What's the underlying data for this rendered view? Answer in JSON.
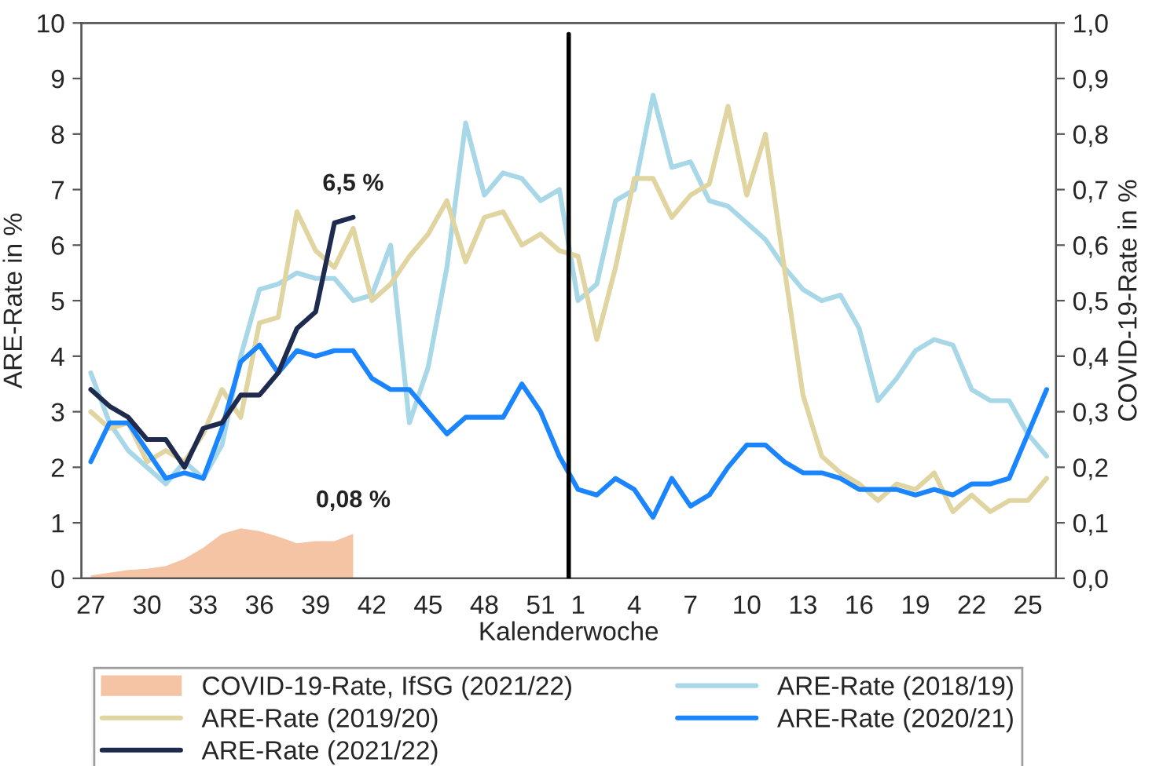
{
  "chart_data": {
    "type": "line",
    "xlabel": "Kalenderwoche",
    "ylabel": "ARE-Rate in %",
    "y2label": "COVID-19-Rate in %",
    "categories": [
      "27",
      null,
      null,
      "30",
      null,
      null,
      "33",
      null,
      null,
      "36",
      null,
      null,
      "39",
      null,
      null,
      "42",
      null,
      null,
      "45",
      null,
      null,
      "48",
      null,
      null,
      "51",
      null,
      "1",
      null,
      null,
      "4",
      null,
      null,
      "7",
      null,
      null,
      "10",
      null,
      null,
      "13",
      null,
      null,
      "16",
      null,
      null,
      "19",
      null,
      null,
      "22",
      null,
      null,
      "25",
      null
    ],
    "ylim": [
      0,
      10
    ],
    "yticks": [
      0,
      1,
      2,
      3,
      4,
      5,
      6,
      7,
      8,
      9,
      10
    ],
    "y2lim": [
      0,
      1
    ],
    "y2ticks": [
      {
        "value": 0,
        "label": "0,0"
      },
      {
        "value": 0.1,
        "label": "0,1"
      },
      {
        "value": 0.2,
        "label": "0,2"
      },
      {
        "value": 0.3,
        "label": "0,3"
      },
      {
        "value": 0.4,
        "label": "0,4"
      },
      {
        "value": 0.5,
        "label": "0,5"
      },
      {
        "value": 0.6,
        "label": "0,6"
      },
      {
        "value": 0.7,
        "label": "0,7"
      },
      {
        "value": 0.8,
        "label": "0,8"
      },
      {
        "value": 0.9,
        "label": "0,9"
      },
      {
        "value": 1,
        "label": "1,0"
      }
    ],
    "grid": false,
    "legend": "bottom",
    "marker": "none",
    "line_style": "solid",
    "series": [
      {
        "name": "COVID-19-Rate, IfSG (2021/22)",
        "type": "area",
        "axis": "y2",
        "color": "#f5c4a4",
        "values": [
          0.005,
          0.01,
          0.015,
          0.017,
          0.022,
          0.035,
          0.055,
          0.08,
          0.09,
          0.085,
          0.075,
          0.063,
          0.067,
          0.067,
          0.08,
          null,
          null,
          null,
          null,
          null,
          null,
          null,
          null,
          null,
          null,
          null,
          null,
          null,
          null,
          null,
          null,
          null,
          null,
          null,
          null,
          null,
          null,
          null,
          null,
          null,
          null,
          null,
          null,
          null,
          null,
          null,
          null,
          null,
          null,
          null,
          null,
          null
        ],
        "value_labels": [
          null,
          null,
          null,
          null,
          null,
          null,
          null,
          null,
          null,
          null,
          null,
          null,
          null,
          null,
          "0,08 %",
          null,
          null,
          null,
          null,
          null,
          null,
          null,
          null,
          null,
          null,
          null,
          null,
          null,
          null,
          null,
          null,
          null,
          null,
          null,
          null,
          null,
          null,
          null,
          null,
          null,
          null,
          null,
          null,
          null,
          null,
          null,
          null,
          null,
          null,
          null,
          null,
          null
        ]
      },
      {
        "name": "ARE-Rate (2018/19)",
        "color": "#a8d8e8",
        "values": [
          3.7,
          2.8,
          2.3,
          2.0,
          1.7,
          2.1,
          1.8,
          2.4,
          4.0,
          5.2,
          5.3,
          5.5,
          5.4,
          5.4,
          5.0,
          5.1,
          6.0,
          2.8,
          3.8,
          5.6,
          8.2,
          6.9,
          7.3,
          7.2,
          6.8,
          7.0,
          5.0,
          5.3,
          6.8,
          7.0,
          8.7,
          7.4,
          7.5,
          6.8,
          6.7,
          6.4,
          6.1,
          5.6,
          5.2,
          5.0,
          5.1,
          4.5,
          3.2,
          3.6,
          4.1,
          4.3,
          4.2,
          3.4,
          3.2,
          3.2,
          2.6,
          2.2
        ]
      },
      {
        "name": "ARE-Rate (2019/20)",
        "color": "#e0d5a0",
        "values": [
          3.0,
          2.7,
          2.8,
          2.1,
          2.3,
          2.1,
          2.6,
          3.4,
          2.9,
          4.6,
          4.7,
          6.6,
          5.9,
          5.6,
          6.3,
          5.0,
          5.3,
          5.8,
          6.2,
          6.8,
          5.7,
          6.5,
          6.6,
          6.0,
          6.2,
          5.9,
          5.8,
          4.3,
          5.6,
          7.2,
          7.2,
          6.5,
          6.9,
          7.1,
          8.5,
          6.9,
          8.0,
          5.6,
          3.3,
          2.2,
          1.9,
          1.7,
          1.4,
          1.7,
          1.6,
          1.9,
          1.2,
          1.5,
          1.2,
          1.4,
          1.4,
          1.8
        ]
      },
      {
        "name": "ARE-Rate (2020/21)",
        "color": "#1a85ff",
        "values": [
          2.1,
          2.8,
          2.8,
          2.3,
          1.8,
          1.9,
          1.8,
          2.7,
          3.9,
          4.2,
          3.7,
          4.1,
          4.0,
          4.1,
          4.1,
          3.6,
          3.4,
          3.4,
          3.0,
          2.6,
          2.9,
          2.9,
          2.9,
          3.5,
          3.0,
          2.2,
          1.6,
          1.5,
          1.8,
          1.6,
          1.1,
          1.8,
          1.3,
          1.5,
          2.0,
          2.4,
          2.4,
          2.1,
          1.9,
          1.9,
          1.8,
          1.6,
          1.6,
          1.6,
          1.5,
          1.6,
          1.5,
          1.7,
          1.7,
          1.8,
          2.6,
          3.4
        ]
      },
      {
        "name": "ARE-Rate (2021/22)",
        "color": "#1f2a4f",
        "values": [
          3.4,
          3.1,
          2.9,
          2.5,
          2.5,
          2.0,
          2.7,
          2.8,
          3.3,
          3.3,
          3.7,
          4.5,
          4.8,
          6.4,
          6.5,
          null,
          null,
          null,
          null,
          null,
          null,
          null,
          null,
          null,
          null,
          null,
          null,
          null,
          null,
          null,
          null,
          null,
          null,
          null,
          null,
          null,
          null,
          null,
          null,
          null,
          null,
          null,
          null,
          null,
          null,
          null,
          null,
          null,
          null,
          null,
          null,
          null
        ],
        "value_labels": [
          null,
          null,
          null,
          null,
          null,
          null,
          null,
          null,
          null,
          null,
          null,
          null,
          null,
          null,
          "6,5 %",
          null,
          null,
          null,
          null,
          null,
          null,
          null,
          null,
          null,
          null,
          null,
          null,
          null,
          null,
          null,
          null,
          null,
          null,
          null,
          null,
          null,
          null,
          null,
          null,
          null,
          null,
          null,
          null,
          null,
          null,
          null,
          null,
          null,
          null,
          null,
          null,
          null
        ]
      }
    ]
  }
}
